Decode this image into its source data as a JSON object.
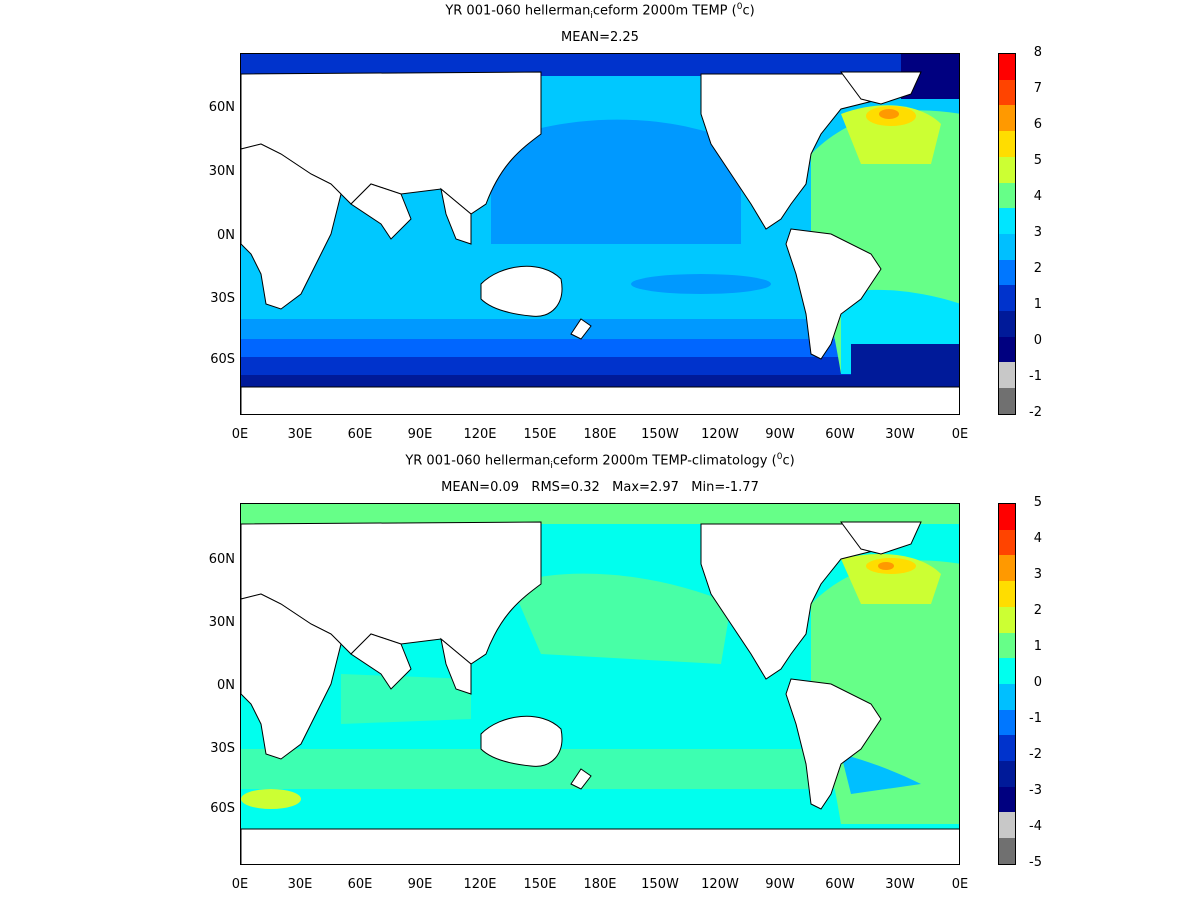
{
  "panels": [
    {
      "title": "YR 001-060 hellerman",
      "title_sub": "i",
      "title_rest": "ceform 2000m TEMP (",
      "title_sup": "0",
      "title_end": "c)",
      "stats": "MEAN=2.25",
      "lat_labels": [
        "60N",
        "30N",
        "0N",
        "30S",
        "60S"
      ],
      "lon_labels": [
        "0E",
        "30E",
        "60E",
        "90E",
        "120E",
        "150E",
        "180E",
        "150W",
        "120W",
        "90W",
        "60W",
        "30W",
        "0E"
      ],
      "colorbar": {
        "labels": [
          "8",
          "7",
          "6",
          "5",
          "4",
          "3",
          "2",
          "1",
          "0",
          "-1",
          "-2"
        ],
        "colors": [
          "#ff0000",
          "#ff4400",
          "#ff9900",
          "#ffdd00",
          "#ccff33",
          "#66ff88",
          "#00e5ff",
          "#00bfff",
          "#0077ff",
          "#0033cc",
          "#001a99",
          "#000080",
          "#c8c8c8",
          "#707070"
        ]
      }
    },
    {
      "title": "YR 001-060 hellerman",
      "title_sub": "i",
      "title_rest": "ceform 2000m TEMP-climatology (",
      "title_sup": "0",
      "title_end": "c)",
      "stats": "MEAN=0.09   RMS=0.32   Max=2.97   Min=-1.77",
      "lat_labels": [
        "60N",
        "30N",
        "0N",
        "30S",
        "60S"
      ],
      "lon_labels": [
        "0E",
        "30E",
        "60E",
        "90E",
        "120E",
        "150E",
        "180E",
        "150W",
        "120W",
        "90W",
        "60W",
        "30W",
        "0E"
      ],
      "colorbar": {
        "labels": [
          "5",
          "4",
          "3",
          "2",
          "1",
          "0",
          "-1",
          "-2",
          "-3",
          "-4",
          "-5"
        ],
        "colors": [
          "#ff0000",
          "#ff4400",
          "#ff9900",
          "#ffdd00",
          "#ccff33",
          "#66ff88",
          "#00ffee",
          "#00bfff",
          "#0077ff",
          "#0033cc",
          "#001a99",
          "#000080",
          "#c8c8c8",
          "#707070"
        ]
      }
    }
  ]
}
